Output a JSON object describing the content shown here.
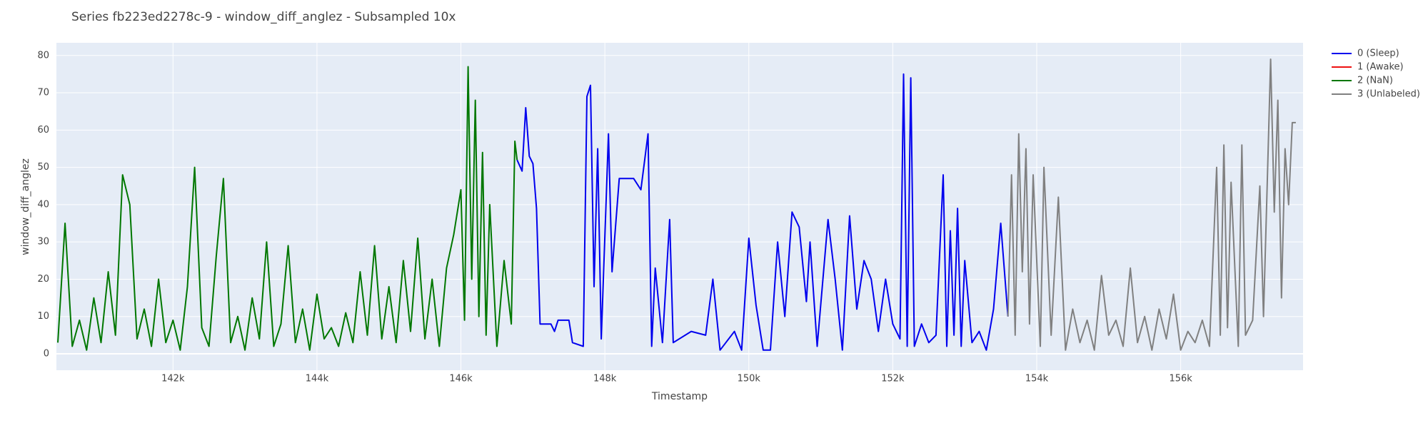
{
  "chart_data": {
    "type": "line",
    "title": "Series fb223ed2278c-9 - window_diff_anglez - Subsampled 10x",
    "x_label": "Timestamp",
    "y_label": "window_diff_anglez",
    "xlim": [
      140380,
      157700
    ],
    "ylim": [
      -4.4,
      83.4
    ],
    "xticks": [
      {
        "value": 142000,
        "label": "142k"
      },
      {
        "value": 144000,
        "label": "144k"
      },
      {
        "value": 146000,
        "label": "146k"
      },
      {
        "value": 148000,
        "label": "148k"
      },
      {
        "value": 150000,
        "label": "150k"
      },
      {
        "value": 152000,
        "label": "152k"
      },
      {
        "value": 154000,
        "label": "154k"
      },
      {
        "value": 156000,
        "label": "156k"
      }
    ],
    "yticks": [
      0,
      10,
      20,
      30,
      40,
      50,
      60,
      70,
      80
    ],
    "grid": true,
    "legend": "right",
    "series": [
      {
        "name": "0 (Sleep)",
        "color": "#0000ee",
        "x": [
          146780,
          146850,
          146900,
          146950,
          147000,
          147050,
          147100,
          147250,
          147300,
          147350,
          147500,
          147550,
          147700,
          147750,
          147800,
          147850,
          147900,
          147950,
          148050,
          148100,
          148200,
          148400,
          148500,
          148600,
          148650,
          148700,
          148800,
          148900,
          148950,
          149200,
          149400,
          149500,
          149600,
          149800,
          149900,
          150000,
          150100,
          150200,
          150300,
          150400,
          150500,
          150600,
          150700,
          150800,
          150850,
          150950,
          151100,
          151200,
          151300,
          151400,
          151500,
          151600,
          151700,
          151800,
          151900,
          152000,
          152100,
          152150,
          152200,
          152250,
          152300,
          152400,
          152500,
          152600,
          152700,
          152750,
          152800,
          152850,
          152900,
          152950,
          153000,
          153100,
          153200,
          153300,
          153400,
          153500,
          153600
        ],
        "values": [
          52,
          49,
          66,
          53,
          51,
          39,
          8,
          8,
          6,
          9,
          9,
          3,
          2,
          69,
          72,
          18,
          55,
          4,
          59,
          22,
          47,
          47,
          44,
          59,
          2,
          23,
          3,
          36,
          3,
          6,
          5,
          20,
          1,
          6,
          1,
          31,
          13,
          1,
          1,
          30,
          10,
          38,
          34,
          14,
          30,
          2,
          36,
          20,
          1,
          37,
          12,
          25,
          20,
          6,
          20,
          8,
          4,
          75,
          2,
          74,
          2,
          8,
          3,
          5,
          48,
          2,
          33,
          5,
          39,
          2,
          25,
          3,
          6,
          1,
          12,
          35,
          10
        ]
      },
      {
        "name": "1 (Awake)",
        "color": "#ee1111",
        "x": [],
        "values": []
      },
      {
        "name": "2 (NaN)",
        "color": "#007700",
        "x": [
          140400,
          140500,
          140600,
          140700,
          140800,
          140900,
          141000,
          141100,
          141200,
          141300,
          141400,
          141500,
          141600,
          141700,
          141800,
          141900,
          142000,
          142100,
          142200,
          142300,
          142400,
          142500,
          142600,
          142700,
          142800,
          142900,
          143000,
          143100,
          143200,
          143300,
          143400,
          143500,
          143600,
          143700,
          143800,
          143900,
          144000,
          144100,
          144200,
          144300,
          144400,
          144500,
          144600,
          144700,
          144800,
          144900,
          145000,
          145100,
          145200,
          145300,
          145400,
          145500,
          145600,
          145700,
          145800,
          145900,
          146000,
          146050,
          146100,
          146150,
          146200,
          146250,
          146300,
          146350,
          146400,
          146500,
          146600,
          146700,
          146750,
          146780
        ],
        "values": [
          3,
          35,
          2,
          9,
          1,
          15,
          3,
          22,
          5,
          48,
          40,
          4,
          12,
          2,
          20,
          3,
          9,
          1,
          18,
          50,
          7,
          2,
          26,
          47,
          3,
          10,
          1,
          15,
          4,
          30,
          2,
          8,
          29,
          3,
          12,
          1,
          16,
          4,
          7,
          2,
          11,
          3,
          22,
          5,
          29,
          4,
          18,
          3,
          25,
          6,
          31,
          4,
          20,
          2,
          23,
          32,
          44,
          9,
          77,
          20,
          68,
          10,
          54,
          5,
          40,
          2,
          25,
          8,
          57,
          52
        ]
      },
      {
        "name": "3 (Unlabeled)",
        "color": "#808080",
        "x": [
          153600,
          153650,
          153700,
          153750,
          153800,
          153850,
          153900,
          153950,
          154050,
          154100,
          154200,
          154300,
          154400,
          154500,
          154600,
          154700,
          154800,
          154900,
          155000,
          155100,
          155200,
          155300,
          155400,
          155500,
          155600,
          155700,
          155800,
          155900,
          156000,
          156100,
          156200,
          156300,
          156400,
          156500,
          156550,
          156600,
          156650,
          156700,
          156800,
          156850,
          156900,
          157000,
          157100,
          157150,
          157200,
          157250,
          157300,
          157350,
          157400,
          157450,
          157500,
          157550,
          157600
        ],
        "values": [
          10,
          48,
          5,
          59,
          22,
          55,
          8,
          48,
          2,
          50,
          5,
          42,
          1,
          12,
          3,
          9,
          1,
          21,
          5,
          9,
          2,
          23,
          3,
          10,
          1,
          12,
          4,
          16,
          1,
          6,
          3,
          9,
          2,
          50,
          5,
          56,
          7,
          46,
          2,
          56,
          5,
          9,
          45,
          10,
          44,
          79,
          38,
          68,
          15,
          55,
          40,
          62,
          62
        ]
      }
    ]
  }
}
